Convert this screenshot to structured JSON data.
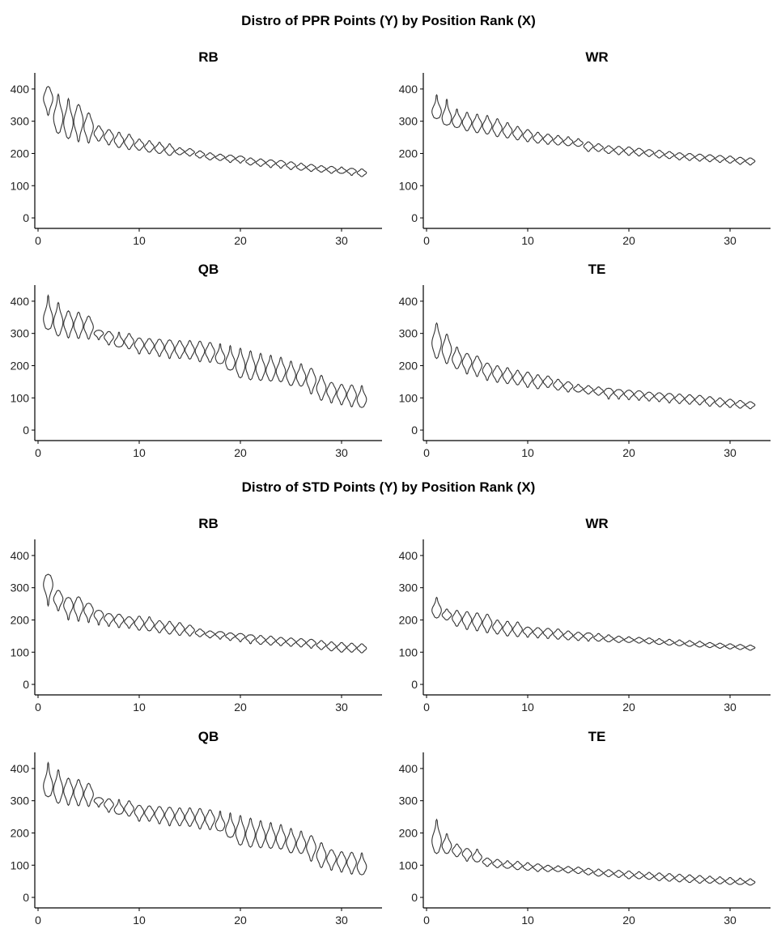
{
  "sections": [
    {
      "title": "Distro of PPR Points (Y) by Position Rank (X)"
    },
    {
      "title": "Distro of STD Points (Y) by Position Rank (X)"
    }
  ],
  "colors": {
    "violin_stroke": "#333333",
    "violin_fill": "#ffffff",
    "axis": "#000000"
  },
  "chart_data": [
    {
      "type": "violin",
      "section": "PPR",
      "panel": "RB",
      "x": [
        1,
        2,
        3,
        4,
        5,
        6,
        7,
        8,
        9,
        10,
        11,
        12,
        13,
        14,
        15,
        16,
        17,
        18,
        19,
        20,
        21,
        22,
        23,
        24,
        25,
        26,
        27,
        28,
        29,
        30,
        31,
        32
      ],
      "xlim": [
        0,
        34
      ],
      "ylim": [
        -20,
        450
      ],
      "xticks": [
        0,
        10,
        20,
        30
      ],
      "yticks": [
        0,
        100,
        200,
        300,
        400
      ],
      "lo": [
        318,
        262,
        246,
        236,
        232,
        238,
        226,
        218,
        212,
        210,
        204,
        200,
        194,
        196,
        192,
        186,
        180,
        178,
        172,
        170,
        164,
        160,
        156,
        154,
        150,
        148,
        144,
        142,
        138,
        138,
        132,
        128
      ],
      "hi": [
        408,
        384,
        370,
        352,
        326,
        286,
        274,
        266,
        260,
        245,
        240,
        235,
        230,
        218,
        215,
        208,
        202,
        198,
        195,
        192,
        186,
        183,
        180,
        178,
        174,
        170,
        166,
        162,
        160,
        158,
        154,
        152
      ],
      "med": [
        370,
        310,
        295,
        300,
        282,
        262,
        252,
        240,
        235,
        226,
        220,
        215,
        210,
        206,
        204,
        197,
        191,
        188,
        185,
        183,
        175,
        172,
        170,
        168,
        163,
        158,
        156,
        152,
        150,
        146,
        145,
        140
      ]
    },
    {
      "type": "violin",
      "section": "PPR",
      "panel": "WR",
      "x": [
        1,
        2,
        3,
        4,
        5,
        6,
        7,
        8,
        9,
        10,
        11,
        12,
        13,
        14,
        15,
        16,
        17,
        18,
        19,
        20,
        21,
        22,
        23,
        24,
        25,
        26,
        27,
        28,
        29,
        30,
        31,
        32
      ],
      "xlim": [
        0,
        34
      ],
      "ylim": [
        -20,
        450
      ],
      "xticks": [
        0,
        10,
        20,
        30
      ],
      "yticks": [
        0,
        100,
        200,
        300,
        400
      ],
      "lo": [
        308,
        288,
        280,
        270,
        264,
        260,
        252,
        248,
        242,
        236,
        232,
        228,
        226,
        224,
        222,
        206,
        206,
        200,
        196,
        194,
        192,
        190,
        186,
        184,
        180,
        178,
        176,
        174,
        172,
        170,
        166,
        164
      ],
      "hi": [
        382,
        368,
        338,
        328,
        322,
        318,
        308,
        296,
        284,
        274,
        266,
        260,
        256,
        252,
        246,
        236,
        230,
        224,
        222,
        220,
        216,
        212,
        210,
        206,
        202,
        200,
        198,
        196,
        194,
        192,
        188,
        186
      ],
      "med": [
        330,
        310,
        300,
        296,
        290,
        285,
        278,
        270,
        262,
        256,
        248,
        245,
        240,
        236,
        232,
        222,
        218,
        212,
        210,
        208,
        205,
        202,
        198,
        195,
        192,
        190,
        188,
        186,
        184,
        181,
        178,
        176
      ]
    },
    {
      "type": "violin",
      "section": "PPR",
      "panel": "QB",
      "x": [
        1,
        2,
        3,
        4,
        5,
        6,
        7,
        8,
        9,
        10,
        11,
        12,
        13,
        14,
        15,
        16,
        17,
        18,
        19,
        20,
        21,
        22,
        23,
        24,
        25,
        26,
        27,
        28,
        29,
        30,
        31,
        32
      ],
      "xlim": [
        0,
        34
      ],
      "ylim": [
        -20,
        450
      ],
      "xticks": [
        0,
        10,
        20,
        30
      ],
      "yticks": [
        0,
        100,
        200,
        300,
        400
      ],
      "lo": [
        312,
        292,
        286,
        284,
        282,
        280,
        264,
        258,
        252,
        236,
        236,
        228,
        222,
        222,
        220,
        212,
        210,
        206,
        186,
        162,
        156,
        154,
        152,
        150,
        138,
        136,
        112,
        92,
        84,
        78,
        72,
        70
      ],
      "hi": [
        418,
        396,
        370,
        366,
        354,
        310,
        306,
        304,
        300,
        286,
        284,
        282,
        280,
        278,
        278,
        276,
        272,
        268,
        262,
        254,
        246,
        238,
        232,
        226,
        214,
        206,
        192,
        170,
        148,
        142,
        140,
        138
      ],
      "med": [
        345,
        335,
        330,
        325,
        320,
        300,
        288,
        272,
        275,
        265,
        262,
        258,
        255,
        250,
        248,
        245,
        242,
        225,
        210,
        200,
        195,
        190,
        185,
        182,
        170,
        165,
        155,
        130,
        120,
        112,
        108,
        95
      ]
    },
    {
      "type": "violin",
      "section": "PPR",
      "panel": "TE",
      "x": [
        1,
        2,
        3,
        4,
        5,
        6,
        7,
        8,
        9,
        10,
        11,
        12,
        13,
        14,
        15,
        16,
        17,
        18,
        19,
        20,
        21,
        22,
        23,
        24,
        25,
        26,
        27,
        28,
        29,
        30,
        31,
        32
      ],
      "xlim": [
        0,
        34
      ],
      "ylim": [
        -20,
        450
      ],
      "xticks": [
        0,
        10,
        20,
        30
      ],
      "yticks": [
        0,
        100,
        200,
        300,
        400
      ],
      "lo": [
        222,
        206,
        190,
        174,
        166,
        154,
        148,
        144,
        140,
        132,
        128,
        132,
        124,
        118,
        118,
        112,
        108,
        96,
        96,
        94,
        92,
        90,
        88,
        84,
        82,
        80,
        78,
        74,
        72,
        70,
        68,
        66
      ],
      "hi": [
        332,
        298,
        258,
        238,
        230,
        208,
        200,
        194,
        186,
        180,
        172,
        168,
        158,
        150,
        142,
        138,
        134,
        130,
        126,
        124,
        122,
        118,
        116,
        114,
        112,
        110,
        108,
        104,
        100,
        96,
        92,
        88
      ],
      "med": [
        270,
        250,
        220,
        210,
        200,
        185,
        175,
        168,
        162,
        158,
        150,
        150,
        140,
        136,
        128,
        125,
        121,
        118,
        115,
        112,
        110,
        106,
        104,
        102,
        98,
        96,
        94,
        90,
        86,
        84,
        80,
        78
      ]
    },
    {
      "type": "violin",
      "section": "STD",
      "panel": "RB",
      "x": [
        1,
        2,
        3,
        4,
        5,
        6,
        7,
        8,
        9,
        10,
        11,
        12,
        13,
        14,
        15,
        16,
        17,
        18,
        19,
        20,
        21,
        22,
        23,
        24,
        25,
        26,
        27,
        28,
        29,
        30,
        31,
        32
      ],
      "xlim": [
        0,
        34
      ],
      "ylim": [
        -20,
        450
      ],
      "xticks": [
        0,
        10,
        20,
        30
      ],
      "yticks": [
        0,
        100,
        200,
        300,
        400
      ],
      "lo": [
        244,
        228,
        200,
        196,
        192,
        184,
        180,
        176,
        174,
        168,
        166,
        160,
        156,
        152,
        150,
        148,
        144,
        140,
        136,
        132,
        126,
        124,
        122,
        120,
        118,
        116,
        112,
        108,
        104,
        100,
        100,
        98
      ],
      "hi": [
        342,
        292,
        270,
        272,
        252,
        230,
        220,
        218,
        210,
        212,
        210,
        198,
        196,
        192,
        184,
        172,
        166,
        164,
        160,
        158,
        154,
        152,
        150,
        146,
        144,
        142,
        140,
        136,
        132,
        130,
        128,
        126
      ],
      "med": [
        310,
        265,
        245,
        240,
        230,
        215,
        205,
        200,
        195,
        190,
        185,
        180,
        175,
        172,
        168,
        160,
        156,
        155,
        150,
        148,
        144,
        138,
        136,
        134,
        132,
        130,
        128,
        122,
        118,
        115,
        114,
        112
      ]
    },
    {
      "type": "violin",
      "section": "STD",
      "panel": "WR",
      "x": [
        1,
        2,
        3,
        4,
        5,
        6,
        7,
        8,
        9,
        10,
        11,
        12,
        13,
        14,
        15,
        16,
        17,
        18,
        19,
        20,
        21,
        22,
        23,
        24,
        25,
        26,
        27,
        28,
        29,
        30,
        31,
        32
      ],
      "xlim": [
        0,
        34
      ],
      "ylim": [
        -20,
        450
      ],
      "xticks": [
        0,
        10,
        20,
        30
      ],
      "yticks": [
        0,
        100,
        200,
        300,
        400
      ],
      "lo": [
        206,
        200,
        180,
        170,
        166,
        160,
        156,
        150,
        148,
        146,
        144,
        142,
        140,
        138,
        136,
        134,
        134,
        132,
        130,
        130,
        128,
        126,
        124,
        122,
        120,
        118,
        116,
        114,
        112,
        110,
        108,
        106
      ],
      "hi": [
        270,
        234,
        230,
        226,
        222,
        218,
        200,
        196,
        194,
        178,
        176,
        174,
        172,
        166,
        162,
        160,
        158,
        154,
        150,
        148,
        146,
        144,
        142,
        140,
        138,
        136,
        134,
        130,
        128,
        126,
        124,
        122
      ],
      "med": [
        230,
        215,
        205,
        200,
        195,
        190,
        178,
        173,
        170,
        165,
        162,
        160,
        156,
        152,
        150,
        150,
        145,
        142,
        140,
        138,
        137,
        135,
        132,
        130,
        128,
        126,
        124,
        122,
        120,
        118,
        116,
        114
      ]
    },
    {
      "type": "violin",
      "section": "STD",
      "panel": "QB",
      "x": [
        1,
        2,
        3,
        4,
        5,
        6,
        7,
        8,
        9,
        10,
        11,
        12,
        13,
        14,
        15,
        16,
        17,
        18,
        19,
        20,
        21,
        22,
        23,
        24,
        25,
        26,
        27,
        28,
        29,
        30,
        31,
        32
      ],
      "xlim": [
        0,
        34
      ],
      "ylim": [
        -20,
        450
      ],
      "xticks": [
        0,
        10,
        20,
        30
      ],
      "yticks": [
        0,
        100,
        200,
        300,
        400
      ],
      "lo": [
        312,
        292,
        286,
        284,
        282,
        280,
        264,
        258,
        252,
        236,
        236,
        228,
        222,
        222,
        220,
        212,
        210,
        206,
        186,
        162,
        156,
        154,
        152,
        150,
        138,
        136,
        112,
        92,
        84,
        78,
        72,
        70
      ],
      "hi": [
        418,
        396,
        370,
        366,
        354,
        310,
        306,
        304,
        300,
        286,
        284,
        282,
        280,
        278,
        278,
        276,
        272,
        268,
        262,
        254,
        246,
        238,
        232,
        226,
        214,
        206,
        192,
        170,
        148,
        142,
        140,
        138
      ],
      "med": [
        345,
        335,
        330,
        325,
        320,
        300,
        288,
        272,
        275,
        265,
        262,
        258,
        255,
        250,
        248,
        245,
        242,
        225,
        210,
        200,
        195,
        190,
        185,
        182,
        170,
        165,
        155,
        130,
        120,
        112,
        108,
        95
      ]
    },
    {
      "type": "violin",
      "section": "STD",
      "panel": "TE",
      "x": [
        1,
        2,
        3,
        4,
        5,
        6,
        7,
        8,
        9,
        10,
        11,
        12,
        13,
        14,
        15,
        16,
        17,
        18,
        19,
        20,
        21,
        22,
        23,
        24,
        25,
        26,
        27,
        28,
        29,
        30,
        31,
        32
      ],
      "xlim": [
        0,
        34
      ],
      "ylim": [
        -20,
        450
      ],
      "xticks": [
        0,
        10,
        20,
        30
      ],
      "yticks": [
        0,
        100,
        200,
        300,
        400
      ],
      "lo": [
        136,
        136,
        126,
        112,
        110,
        96,
        92,
        90,
        86,
        84,
        80,
        80,
        80,
        76,
        74,
        70,
        66,
        64,
        62,
        58,
        58,
        56,
        52,
        50,
        48,
        46,
        44,
        44,
        42,
        40,
        40,
        38
      ],
      "hi": [
        242,
        198,
        166,
        152,
        150,
        122,
        118,
        114,
        112,
        108,
        104,
        100,
        98,
        96,
        94,
        90,
        88,
        86,
        84,
        82,
        80,
        78,
        76,
        74,
        72,
        70,
        68,
        66,
        64,
        62,
        60,
        58
      ],
      "med": [
        175,
        160,
        145,
        135,
        125,
        110,
        105,
        100,
        98,
        95,
        93,
        90,
        88,
        86,
        84,
        80,
        76,
        75,
        73,
        70,
        68,
        66,
        64,
        62,
        60,
        58,
        56,
        54,
        52,
        50,
        48,
        47
      ]
    }
  ]
}
